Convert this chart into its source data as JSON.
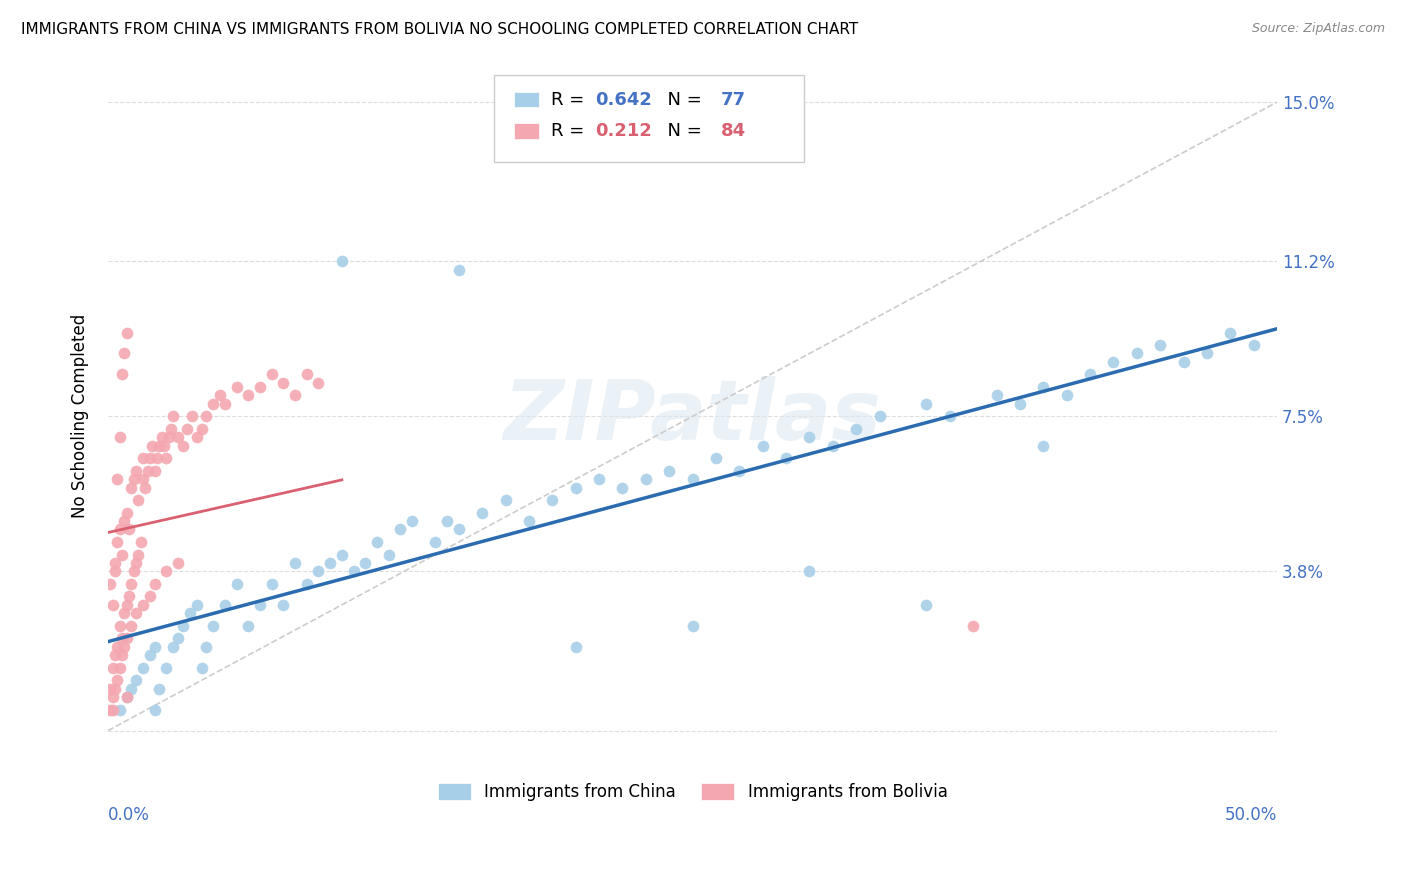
{
  "title": "IMMIGRANTS FROM CHINA VS IMMIGRANTS FROM BOLIVIA NO SCHOOLING COMPLETED CORRELATION CHART",
  "source": "Source: ZipAtlas.com",
  "ylabel": "No Schooling Completed",
  "legend_china_label": "Immigrants from China",
  "legend_bolivia_label": "Immigrants from Bolivia",
  "xlim": [
    0.0,
    0.5
  ],
  "ylim": [
    -0.008,
    0.158
  ],
  "china_R": 0.642,
  "china_N": 77,
  "bolivia_R": 0.212,
  "bolivia_N": 84,
  "china_color": "#a8cfe8",
  "bolivia_color": "#f4a7b0",
  "china_line_color": "#2b6cb0",
  "bolivia_line_color": "#d96070",
  "trend_line_color": "#cccccc",
  "ytick_vals": [
    0.0,
    0.038,
    0.075,
    0.112,
    0.15
  ],
  "ytick_labels_right": [
    "",
    "3.8%",
    "7.5%",
    "11.2%",
    "15.0%"
  ],
  "axis_color": "#4472c4",
  "watermark": "ZIPatlas",
  "china_scatter_x": [
    0.005,
    0.008,
    0.01,
    0.012,
    0.015,
    0.018,
    0.02,
    0.02,
    0.022,
    0.025,
    0.028,
    0.03,
    0.032,
    0.035,
    0.038,
    0.04,
    0.042,
    0.045,
    0.05,
    0.055,
    0.06,
    0.065,
    0.07,
    0.075,
    0.08,
    0.085,
    0.09,
    0.095,
    0.1,
    0.105,
    0.11,
    0.115,
    0.12,
    0.125,
    0.13,
    0.14,
    0.145,
    0.15,
    0.16,
    0.17,
    0.18,
    0.19,
    0.2,
    0.21,
    0.22,
    0.23,
    0.24,
    0.25,
    0.26,
    0.27,
    0.28,
    0.29,
    0.3,
    0.31,
    0.32,
    0.33,
    0.35,
    0.36,
    0.38,
    0.39,
    0.4,
    0.41,
    0.42,
    0.43,
    0.44,
    0.45,
    0.46,
    0.47,
    0.48,
    0.49,
    0.3,
    0.35,
    0.4,
    0.25,
    0.2,
    0.15,
    0.1
  ],
  "china_scatter_y": [
    0.005,
    0.008,
    0.01,
    0.012,
    0.015,
    0.018,
    0.02,
    0.005,
    0.01,
    0.015,
    0.02,
    0.022,
    0.025,
    0.028,
    0.03,
    0.015,
    0.02,
    0.025,
    0.03,
    0.035,
    0.025,
    0.03,
    0.035,
    0.03,
    0.04,
    0.035,
    0.038,
    0.04,
    0.042,
    0.038,
    0.04,
    0.045,
    0.042,
    0.048,
    0.05,
    0.045,
    0.05,
    0.048,
    0.052,
    0.055,
    0.05,
    0.055,
    0.058,
    0.06,
    0.058,
    0.06,
    0.062,
    0.06,
    0.065,
    0.062,
    0.068,
    0.065,
    0.07,
    0.068,
    0.072,
    0.075,
    0.078,
    0.075,
    0.08,
    0.078,
    0.082,
    0.08,
    0.085,
    0.088,
    0.09,
    0.092,
    0.088,
    0.09,
    0.095,
    0.092,
    0.038,
    0.03,
    0.068,
    0.025,
    0.02,
    0.11,
    0.112
  ],
  "bolivia_scatter_x": [
    0.001,
    0.001,
    0.002,
    0.002,
    0.003,
    0.003,
    0.004,
    0.004,
    0.005,
    0.005,
    0.006,
    0.006,
    0.007,
    0.007,
    0.008,
    0.008,
    0.009,
    0.009,
    0.01,
    0.01,
    0.011,
    0.011,
    0.012,
    0.012,
    0.013,
    0.013,
    0.014,
    0.015,
    0.015,
    0.016,
    0.017,
    0.018,
    0.019,
    0.02,
    0.021,
    0.022,
    0.023,
    0.024,
    0.025,
    0.026,
    0.027,
    0.028,
    0.03,
    0.032,
    0.034,
    0.036,
    0.038,
    0.04,
    0.042,
    0.045,
    0.048,
    0.05,
    0.055,
    0.06,
    0.065,
    0.07,
    0.075,
    0.08,
    0.085,
    0.09,
    0.001,
    0.002,
    0.003,
    0.004,
    0.005,
    0.006,
    0.007,
    0.008,
    0.01,
    0.012,
    0.015,
    0.018,
    0.02,
    0.025,
    0.03,
    0.002,
    0.003,
    0.004,
    0.005,
    0.006,
    0.007,
    0.008,
    0.37,
    0.008
  ],
  "bolivia_scatter_y": [
    0.01,
    0.035,
    0.015,
    0.03,
    0.018,
    0.04,
    0.02,
    0.045,
    0.025,
    0.048,
    0.022,
    0.042,
    0.028,
    0.05,
    0.03,
    0.052,
    0.032,
    0.048,
    0.035,
    0.058,
    0.038,
    0.06,
    0.04,
    0.062,
    0.042,
    0.055,
    0.045,
    0.06,
    0.065,
    0.058,
    0.062,
    0.065,
    0.068,
    0.062,
    0.065,
    0.068,
    0.07,
    0.068,
    0.065,
    0.07,
    0.072,
    0.075,
    0.07,
    0.068,
    0.072,
    0.075,
    0.07,
    0.072,
    0.075,
    0.078,
    0.08,
    0.078,
    0.082,
    0.08,
    0.082,
    0.085,
    0.083,
    0.08,
    0.085,
    0.083,
    0.005,
    0.008,
    0.01,
    0.012,
    0.015,
    0.018,
    0.02,
    0.022,
    0.025,
    0.028,
    0.03,
    0.032,
    0.035,
    0.038,
    0.04,
    0.005,
    0.038,
    0.06,
    0.07,
    0.085,
    0.09,
    0.095,
    0.025,
    0.008
  ]
}
